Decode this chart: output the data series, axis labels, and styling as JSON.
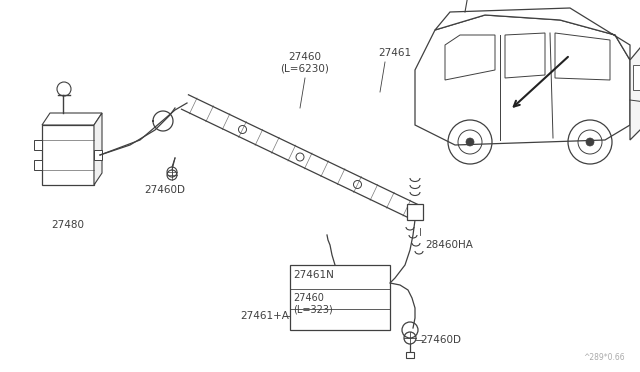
{
  "bg_color": "#ffffff",
  "line_color": "#404040",
  "label_color": "#404040",
  "fig_width": 6.4,
  "fig_height": 3.72,
  "dpi": 100,
  "watermark": "^289*0.66",
  "reservoir_label": "27480",
  "nozzle_label_left": "27460D",
  "hose_label1": "27460\n(L=6230)",
  "hose_label2": "27461",
  "connector_label": "28460HA",
  "box_label1": "27461N",
  "box_label2": "27460\n(L=323)",
  "box_label3": "27461+A",
  "nozzle_label_bot": "27460D",
  "xlim": [
    0,
    640
  ],
  "ylim": [
    0,
    372
  ]
}
